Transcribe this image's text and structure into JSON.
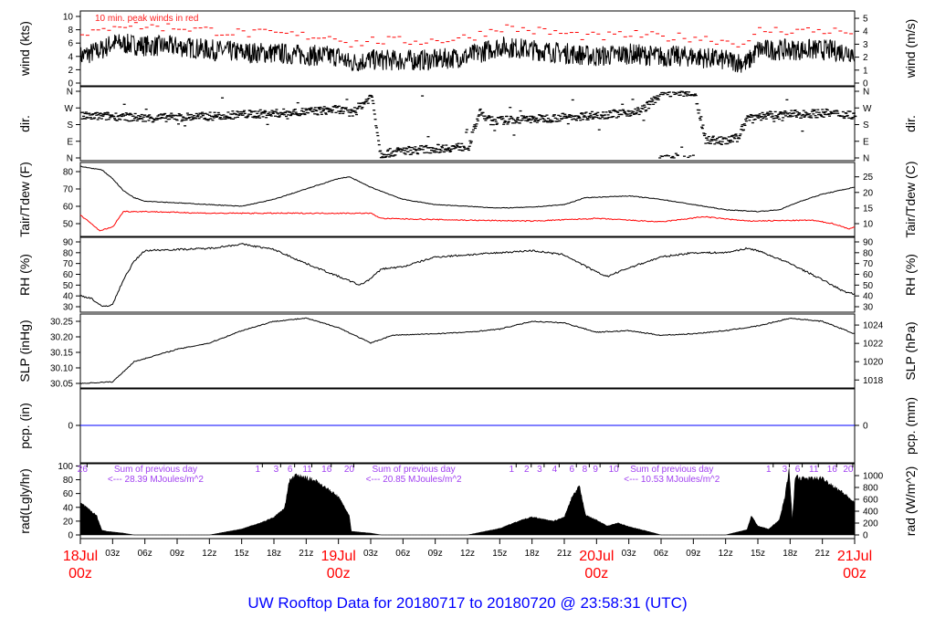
{
  "chart_data": {
    "type": "line",
    "title": "UW Rooftop Data for 20180717  to  20180720 @ 23:58:31  (UTC)",
    "x_units": "hours since 18Jul 00z",
    "x_range": [
      0,
      72
    ],
    "x_ticks": [
      {
        "h": 0,
        "label": "18Jul",
        "sub": "00z",
        "major": true
      },
      {
        "h": 3,
        "label": "03z"
      },
      {
        "h": 6,
        "label": "06z"
      },
      {
        "h": 9,
        "label": "09z"
      },
      {
        "h": 12,
        "label": "12z"
      },
      {
        "h": 15,
        "label": "15z"
      },
      {
        "h": 18,
        "label": "18z"
      },
      {
        "h": 21,
        "label": "21z"
      },
      {
        "h": 24,
        "label": "19Jul",
        "sub": "00z",
        "major": true
      },
      {
        "h": 27,
        "label": "03z"
      },
      {
        "h": 30,
        "label": "06z"
      },
      {
        "h": 33,
        "label": "09z"
      },
      {
        "h": 36,
        "label": "12z"
      },
      {
        "h": 39,
        "label": "15z"
      },
      {
        "h": 42,
        "label": "18z"
      },
      {
        "h": 45,
        "label": "21z"
      },
      {
        "h": 48,
        "label": "20Jul",
        "sub": "00z",
        "major": true
      },
      {
        "h": 51,
        "label": "03z"
      },
      {
        "h": 54,
        "label": "06z"
      },
      {
        "h": 57,
        "label": "09z"
      },
      {
        "h": 60,
        "label": "12z"
      },
      {
        "h": 63,
        "label": "15z"
      },
      {
        "h": 66,
        "label": "18z"
      },
      {
        "h": 69,
        "label": "21z"
      },
      {
        "h": 72,
        "label": "21Jul",
        "sub": "00z",
        "major": true
      }
    ],
    "panels": {
      "wind": {
        "ylabel": "wind (kts)",
        "ylabel_right": "wind (m/s)",
        "ylim": [
          0,
          10
        ],
        "ticks_left": [
          "0",
          "2",
          "4",
          "6",
          "8",
          "10"
        ],
        "ticks_right": [
          "0",
          "1",
          "2",
          "3",
          "4",
          "5"
        ],
        "annotation": "10 min. peak winds in red",
        "colors": {
          "wind": "#000000",
          "peak": "#ff0000"
        },
        "mean_kts": [
          [
            0,
            4
          ],
          [
            2,
            5
          ],
          [
            3,
            6
          ],
          [
            6,
            5.6
          ],
          [
            9,
            5.5
          ],
          [
            12,
            5
          ],
          [
            15,
            4.6
          ],
          [
            18,
            4.5
          ],
          [
            21,
            4.2
          ],
          [
            24,
            4
          ],
          [
            25,
            3
          ],
          [
            27,
            3.5
          ],
          [
            30,
            3.4
          ],
          [
            33,
            3.5
          ],
          [
            36,
            4
          ],
          [
            39,
            5.5
          ],
          [
            42,
            5
          ],
          [
            45,
            4.5
          ],
          [
            48,
            4
          ],
          [
            51,
            4.4
          ],
          [
            54,
            4
          ],
          [
            57,
            4
          ],
          [
            60,
            3.4
          ],
          [
            62,
            3
          ],
          [
            63,
            5
          ],
          [
            66,
            5
          ],
          [
            69,
            5
          ],
          [
            72,
            4.6
          ]
        ],
        "peak_offset_kts": 2.6
      },
      "dir": {
        "ylabel": "dir.",
        "ylabel_right": "dir.",
        "ylim": [
          0,
          360
        ],
        "ticks_left": [
          "N",
          "E",
          "S",
          "W",
          "N"
        ],
        "ticks_right": [
          "N",
          "E",
          "S",
          "W",
          "N"
        ],
        "deg": [
          [
            0,
            225
          ],
          [
            3,
            225
          ],
          [
            6,
            215
          ],
          [
            9,
            220
          ],
          [
            12,
            225
          ],
          [
            15,
            235
          ],
          [
            18,
            240
          ],
          [
            21,
            250
          ],
          [
            24,
            262
          ],
          [
            25,
            240
          ],
          [
            26,
            285
          ],
          [
            27,
            335
          ],
          [
            27.8,
            20
          ],
          [
            30,
            40
          ],
          [
            33,
            50
          ],
          [
            36,
            62
          ],
          [
            37,
            245
          ],
          [
            38,
            200
          ],
          [
            42,
            210
          ],
          [
            45,
            220
          ],
          [
            48,
            232
          ],
          [
            50,
            240
          ],
          [
            52,
            255
          ],
          [
            53,
            300
          ],
          [
            54,
            355
          ],
          [
            57,
            352
          ],
          [
            58,
            100
          ],
          [
            60,
            90
          ],
          [
            61,
            110
          ],
          [
            62,
            222
          ],
          [
            66,
            235
          ],
          [
            69,
            242
          ],
          [
            72,
            232
          ]
        ]
      },
      "temp": {
        "ylabel": "Tair/Tdew (F)",
        "ylabel_right": "Tair/Tdew (C)",
        "ylim": [
          45,
          85
        ],
        "ticks_left": [
          "50",
          "60",
          "70",
          "80"
        ],
        "ticks_right": [
          "10",
          "15",
          "20",
          "25"
        ],
        "colors": {
          "tair": "#000000",
          "tdew": "#ff0000"
        },
        "tair_f": [
          [
            0,
            83
          ],
          [
            2,
            81
          ],
          [
            3,
            76
          ],
          [
            4,
            69
          ],
          [
            5,
            65
          ],
          [
            6,
            63
          ],
          [
            9,
            62
          ],
          [
            12,
            61
          ],
          [
            15,
            60
          ],
          [
            18,
            64
          ],
          [
            21,
            70
          ],
          [
            24,
            76
          ],
          [
            25,
            77
          ],
          [
            27,
            71
          ],
          [
            30,
            64
          ],
          [
            33,
            61
          ],
          [
            36,
            60
          ],
          [
            39,
            59
          ],
          [
            42,
            59.5
          ],
          [
            45,
            61
          ],
          [
            47,
            65
          ],
          [
            51,
            66
          ],
          [
            54,
            64
          ],
          [
            57,
            61
          ],
          [
            60,
            58
          ],
          [
            63,
            57
          ],
          [
            65,
            58
          ],
          [
            67,
            63
          ],
          [
            69,
            67
          ],
          [
            72,
            71
          ]
        ],
        "tdew_f": [
          [
            0,
            55
          ],
          [
            1,
            50
          ],
          [
            1.8,
            46
          ],
          [
            3,
            48
          ],
          [
            4,
            57
          ],
          [
            6,
            57
          ],
          [
            12,
            56
          ],
          [
            24,
            56
          ],
          [
            27,
            56
          ],
          [
            28,
            53
          ],
          [
            36,
            52
          ],
          [
            42,
            51.5
          ],
          [
            48,
            53
          ],
          [
            54,
            51
          ],
          [
            58,
            54
          ],
          [
            62,
            51.5
          ],
          [
            68,
            52
          ],
          [
            70,
            50
          ],
          [
            71.5,
            47
          ],
          [
            72,
            48
          ]
        ]
      },
      "rh": {
        "ylabel": "RH (%)",
        "ylabel_right": "RH (%)",
        "ylim": [
          30,
          90
        ],
        "ticks_left": [
          "30",
          "40",
          "50",
          "60",
          "70",
          "80",
          "90"
        ],
        "ticks_right": [
          "30",
          "40",
          "50",
          "60",
          "70",
          "80",
          "90"
        ],
        "pct": [
          [
            0,
            40
          ],
          [
            1,
            38
          ],
          [
            2,
            30
          ],
          [
            3,
            32
          ],
          [
            4,
            55
          ],
          [
            5,
            72
          ],
          [
            6,
            82
          ],
          [
            9,
            83
          ],
          [
            12,
            84
          ],
          [
            15,
            88
          ],
          [
            18,
            83
          ],
          [
            21,
            70
          ],
          [
            24,
            58
          ],
          [
            26,
            50
          ],
          [
            27,
            56
          ],
          [
            28,
            65
          ],
          [
            30,
            67
          ],
          [
            33,
            76
          ],
          [
            36,
            78
          ],
          [
            39,
            80
          ],
          [
            42,
            82
          ],
          [
            45,
            78
          ],
          [
            48,
            62
          ],
          [
            49,
            58
          ],
          [
            51,
            66
          ],
          [
            54,
            76
          ],
          [
            57,
            80
          ],
          [
            60,
            80
          ],
          [
            62,
            84
          ],
          [
            63,
            82
          ],
          [
            66,
            70
          ],
          [
            69,
            55
          ],
          [
            71,
            44
          ],
          [
            72,
            42
          ]
        ]
      },
      "slp": {
        "ylabel": "SLP (inHg)",
        "ylabel_right": "SLP (hPa)",
        "ylim": [
          30.04,
          30.27
        ],
        "ticks_left": [
          "30.05",
          "30.10",
          "30.15",
          "30.20",
          "30.25"
        ],
        "ticks_right": [
          "1018",
          "1020",
          "1022",
          "1024"
        ],
        "inhg": [
          [
            0,
            30.05
          ],
          [
            3,
            30.055
          ],
          [
            5,
            30.12
          ],
          [
            9,
            30.16
          ],
          [
            12,
            30.18
          ],
          [
            15,
            30.22
          ],
          [
            18,
            30.25
          ],
          [
            21,
            30.26
          ],
          [
            24,
            30.23
          ],
          [
            27,
            30.18
          ],
          [
            29,
            30.205
          ],
          [
            33,
            30.21
          ],
          [
            36,
            30.215
          ],
          [
            39,
            30.225
          ],
          [
            42,
            30.25
          ],
          [
            45,
            30.245
          ],
          [
            48,
            30.215
          ],
          [
            51,
            30.22
          ],
          [
            54,
            30.205
          ],
          [
            57,
            30.21
          ],
          [
            60,
            30.22
          ],
          [
            63,
            30.235
          ],
          [
            66,
            30.26
          ],
          [
            69,
            30.25
          ],
          [
            72,
            30.21
          ]
        ]
      },
      "pcp": {
        "ylabel": "pcp. (in)",
        "ylabel_right": "pcp. (mm)",
        "ticks_left": [
          "0"
        ],
        "ticks_right": [
          "0"
        ],
        "value_in": 0,
        "color": "#0000ff"
      },
      "rad": {
        "ylabel": "rad(Lgly/hr)",
        "ylabel_right": "rad (W/m^2)",
        "ticks_left": [
          "0",
          "20",
          "40",
          "60",
          "80",
          "100"
        ],
        "ticks_right": [
          "0",
          "200",
          "400",
          "600",
          "800",
          "1000"
        ],
        "wm2": [
          [
            0,
            540
          ],
          [
            1.5,
            330
          ],
          [
            2,
            80
          ],
          [
            2.5,
            60
          ],
          [
            3,
            50
          ],
          [
            4,
            30
          ],
          [
            5,
            0
          ],
          [
            12,
            0
          ],
          [
            15,
            100
          ],
          [
            17,
            220
          ],
          [
            18,
            300
          ],
          [
            19,
            450
          ],
          [
            19.4,
            900
          ],
          [
            20,
            1000
          ],
          [
            21,
            960
          ],
          [
            22,
            900
          ],
          [
            24,
            640
          ],
          [
            25,
            330
          ],
          [
            25.2,
            60
          ],
          [
            27,
            30
          ],
          [
            28,
            0
          ],
          [
            36,
            0
          ],
          [
            39,
            110
          ],
          [
            40,
            180
          ],
          [
            41,
            250
          ],
          [
            42,
            300
          ],
          [
            44,
            230
          ],
          [
            45,
            300
          ],
          [
            45.7,
            620
          ],
          [
            46.4,
            820
          ],
          [
            47,
            330
          ],
          [
            48,
            250
          ],
          [
            49,
            150
          ],
          [
            50,
            200
          ],
          [
            51,
            140
          ],
          [
            53,
            50
          ],
          [
            54,
            0
          ],
          [
            60,
            0
          ],
          [
            62,
            90
          ],
          [
            62.4,
            320
          ],
          [
            63,
            150
          ],
          [
            64,
            100
          ],
          [
            65,
            250
          ],
          [
            65.5,
            620
          ],
          [
            65.9,
            1100
          ],
          [
            66.2,
            250
          ],
          [
            66.5,
            1000
          ],
          [
            67,
            950
          ],
          [
            69,
            950
          ],
          [
            71,
            700
          ],
          [
            72,
            540
          ]
        ],
        "hour_labels": [
          {
            "h": 0.2,
            "label": "26"
          },
          {
            "h": 16.5,
            "label": "1"
          },
          {
            "h": 18.2,
            "label": "3"
          },
          {
            "h": 19.5,
            "label": "6"
          },
          {
            "h": 21.1,
            "label": "11"
          },
          {
            "h": 22.9,
            "label": "16"
          },
          {
            "h": 25.0,
            "label": "20"
          },
          {
            "h": 40.1,
            "label": "1"
          },
          {
            "h": 41.5,
            "label": "2"
          },
          {
            "h": 42.7,
            "label": "3"
          },
          {
            "h": 44.1,
            "label": "4"
          },
          {
            "h": 45.7,
            "label": "6"
          },
          {
            "h": 46.9,
            "label": "8"
          },
          {
            "h": 47.9,
            "label": "9"
          },
          {
            "h": 49.6,
            "label": "10"
          },
          {
            "h": 64.0,
            "label": "1"
          },
          {
            "h": 65.5,
            "label": "3"
          },
          {
            "h": 66.7,
            "label": "6"
          },
          {
            "h": 68.2,
            "label": "11"
          },
          {
            "h": 69.9,
            "label": "16"
          },
          {
            "h": 71.4,
            "label": "20"
          }
        ],
        "daily_sums": [
          {
            "h": 7,
            "line1": "Sum of previous day",
            "line2": "<--- 28.39 MJoules/m^2"
          },
          {
            "h": 31,
            "line1": "Sum of previous day",
            "line2": "<--- 20.85 MJoules/m^2"
          },
          {
            "h": 55,
            "line1": "Sum of previous day",
            "line2": "<--- 10.53 MJoules/m^2"
          }
        ]
      }
    }
  }
}
